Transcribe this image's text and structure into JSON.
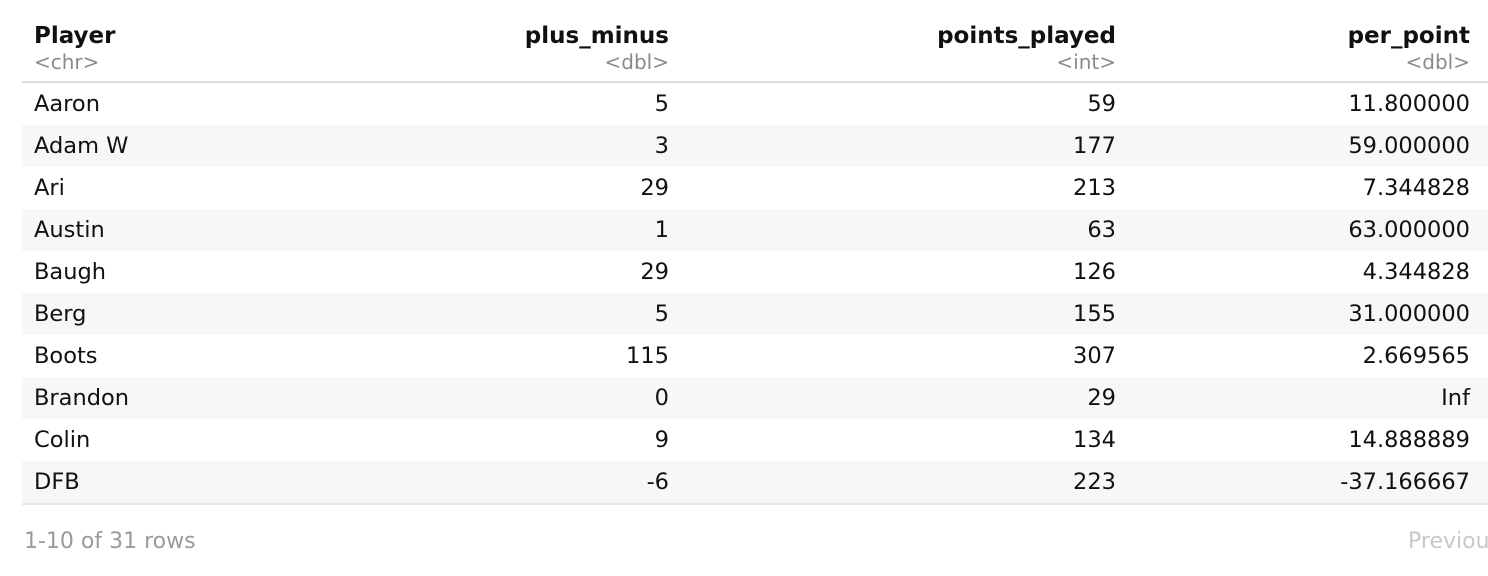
{
  "table": {
    "columns": [
      {
        "name": "Player",
        "type": "<chr>",
        "align": "left"
      },
      {
        "name": "plus_minus",
        "type": "<dbl>",
        "align": "right"
      },
      {
        "name": "points_played",
        "type": "<int>",
        "align": "right"
      },
      {
        "name": "per_point",
        "type": "<dbl>",
        "align": "right"
      }
    ],
    "rows": [
      [
        "Aaron",
        "5",
        "59",
        "11.800000"
      ],
      [
        "Adam W",
        "3",
        "177",
        "59.000000"
      ],
      [
        "Ari",
        "29",
        "213",
        "7.344828"
      ],
      [
        "Austin",
        "1",
        "63",
        "63.000000"
      ],
      [
        "Baugh",
        "29",
        "126",
        "4.344828"
      ],
      [
        "Berg",
        "5",
        "155",
        "31.000000"
      ],
      [
        "Boots",
        "115",
        "307",
        "2.669565"
      ],
      [
        "Brandon",
        "0",
        "29",
        "Inf"
      ],
      [
        "Colin",
        "9",
        "134",
        "14.888889"
      ],
      [
        "DFB",
        "-6",
        "223",
        "-37.166667"
      ]
    ]
  },
  "footer": {
    "row_info": "1-10 of 31 rows",
    "previous_label": "Previou"
  },
  "colors": {
    "stripe": "#f7f7f7",
    "header_rule": "#dcdcdc",
    "type_text": "#8a8a8a",
    "footer_text": "#9a9a9a",
    "disabled_text": "#c8c8c8"
  }
}
